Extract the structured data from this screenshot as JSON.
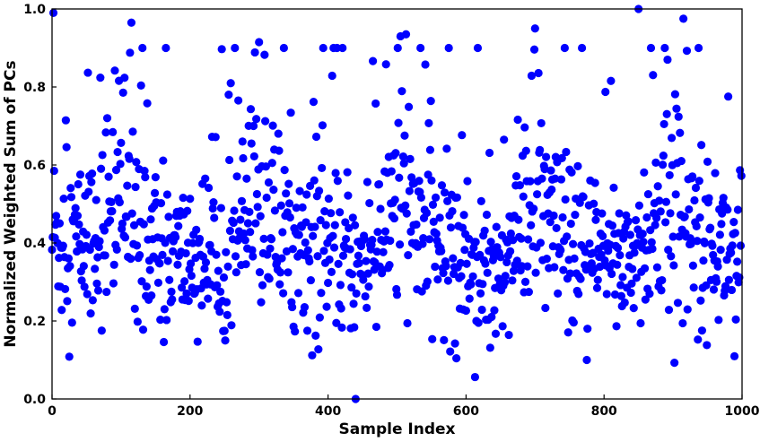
{
  "chart_data": {
    "type": "scatter",
    "title": "",
    "xlabel": "Sample Index",
    "ylabel": "Normalized Weighted Sum of PCs",
    "xlim": [
      0,
      1000
    ],
    "ylim": [
      0,
      1
    ],
    "xticks": [
      0,
      200,
      400,
      600,
      800,
      1000
    ],
    "yticks": [
      0.0,
      0.2,
      0.4,
      0.6,
      0.8,
      1.0
    ],
    "xtick_labels": [
      "0",
      "200",
      "400",
      "600",
      "800",
      "1000"
    ],
    "ytick_labels": [
      "0.0",
      "0.2",
      "0.4",
      "0.6",
      "0.8",
      "1.0"
    ],
    "grid": false,
    "legend": "none",
    "marker_color": "#0000ff",
    "n_points": 1000,
    "highlighted_points": [
      {
        "x": 2,
        "y": 0.99
      },
      {
        "x": 80,
        "y": 0.72
      },
      {
        "x": 115,
        "y": 0.965
      },
      {
        "x": 300,
        "y": 0.915
      },
      {
        "x": 440,
        "y": 0.0
      },
      {
        "x": 505,
        "y": 0.93
      },
      {
        "x": 513,
        "y": 0.935
      },
      {
        "x": 700,
        "y": 0.95
      },
      {
        "x": 775,
        "y": 0.1
      },
      {
        "x": 850,
        "y": 1.0
      },
      {
        "x": 915,
        "y": 0.975
      }
    ],
    "y_profile": [
      {
        "x": 0,
        "y": 0.42,
        "spread": 0.12
      },
      {
        "x": 50,
        "y": 0.4,
        "spread": 0.11
      },
      {
        "x": 100,
        "y": 0.5,
        "spread": 0.13
      },
      {
        "x": 150,
        "y": 0.38,
        "spread": 0.1
      },
      {
        "x": 200,
        "y": 0.36,
        "spread": 0.1
      },
      {
        "x": 250,
        "y": 0.38,
        "spread": 0.1
      },
      {
        "x": 300,
        "y": 0.5,
        "spread": 0.14
      },
      {
        "x": 350,
        "y": 0.4,
        "spread": 0.1
      },
      {
        "x": 400,
        "y": 0.38,
        "spread": 0.11
      },
      {
        "x": 450,
        "y": 0.35,
        "spread": 0.09
      },
      {
        "x": 500,
        "y": 0.5,
        "spread": 0.14
      },
      {
        "x": 550,
        "y": 0.42,
        "spread": 0.1
      },
      {
        "x": 600,
        "y": 0.36,
        "spread": 0.11
      },
      {
        "x": 650,
        "y": 0.34,
        "spread": 0.09
      },
      {
        "x": 700,
        "y": 0.48,
        "spread": 0.14
      },
      {
        "x": 750,
        "y": 0.38,
        "spread": 0.1
      },
      {
        "x": 800,
        "y": 0.36,
        "spread": 0.1
      },
      {
        "x": 850,
        "y": 0.38,
        "spread": 0.11
      },
      {
        "x": 900,
        "y": 0.5,
        "spread": 0.14
      },
      {
        "x": 950,
        "y": 0.4,
        "spread": 0.1
      },
      {
        "x": 1000,
        "y": 0.38,
        "spread": 0.1
      }
    ]
  }
}
